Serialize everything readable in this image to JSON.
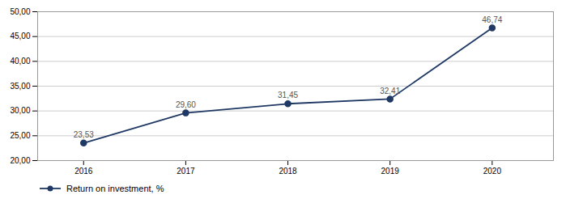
{
  "chart_data": {
    "type": "line",
    "x": [
      2016,
      2017,
      2018,
      2019,
      2020
    ],
    "series": [
      {
        "name": "Return on investment, %",
        "color": "#1F3864",
        "marker": "circle",
        "values": [
          23.53,
          29.6,
          31.45,
          32.41,
          46.74
        ],
        "value_labels": [
          "23,53",
          "29,60",
          "31,45",
          "32,41",
          "46,74"
        ]
      }
    ],
    "xlim": [
      2015.55,
      2020.6
    ],
    "xticks": [
      2016,
      2017,
      2018,
      2019,
      2020
    ],
    "ylim": [
      20.0,
      50.0
    ],
    "yticks": [
      {
        "value": 20.0,
        "label": "20,00"
      },
      {
        "value": 25.0,
        "label": "25,00"
      },
      {
        "value": 30.0,
        "label": "30,00"
      },
      {
        "value": 35.0,
        "label": "35,00"
      },
      {
        "value": 40.0,
        "label": "40,00"
      },
      {
        "value": 45.0,
        "label": "45,00"
      },
      {
        "value": 50.0,
        "label": "50,00"
      }
    ],
    "grid": true,
    "data_labels": true,
    "legend": "bottom"
  }
}
